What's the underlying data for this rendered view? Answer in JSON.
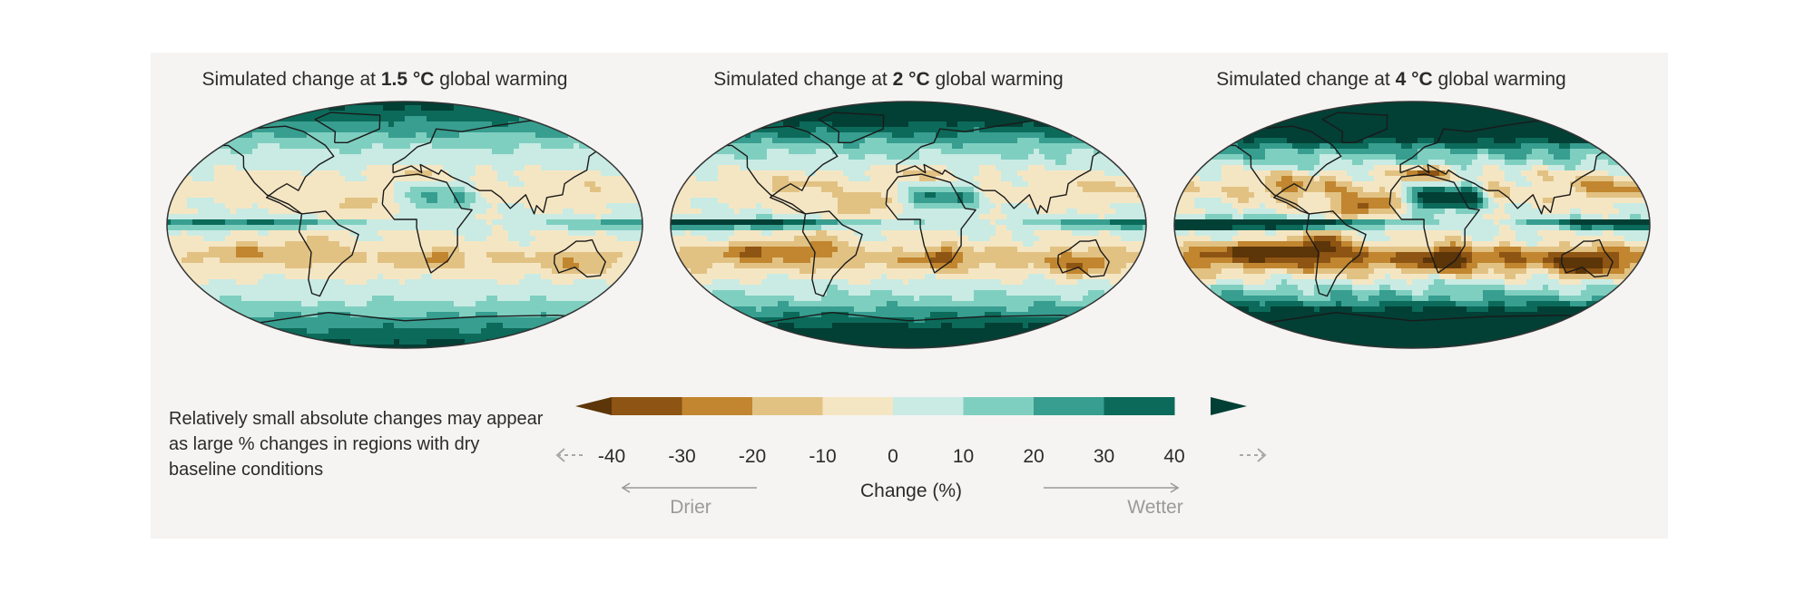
{
  "maps": [
    {
      "title_pre": "Simulated change at ",
      "title_bold": "1.5 °C",
      "title_post": " global warming",
      "intensity": 1
    },
    {
      "title_pre": "Simulated change at ",
      "title_bold": "2 °C",
      "title_post": " global warming",
      "intensity": 2
    },
    {
      "title_pre": "Simulated change at ",
      "title_bold": "4 °C",
      "title_post": " global warming",
      "intensity": 3
    }
  ],
  "note": "Relatively small absolute changes may appear as large % changes in regions with dry baseline conditions",
  "colorbar": {
    "ticks": [
      "-40",
      "-30",
      "-20",
      "-10",
      "0",
      "10",
      "20",
      "30",
      "40"
    ],
    "label": "Change (%)",
    "drier_label": "Drier",
    "wetter_label": "Wetter",
    "colors": [
      "#5c3508",
      "#8d5413",
      "#c1862f",
      "#e2c283",
      "#f5e6c3",
      "#c9ebe4",
      "#7fcfc0",
      "#379e90",
      "#0c6a5a",
      "#023f35"
    ]
  }
}
